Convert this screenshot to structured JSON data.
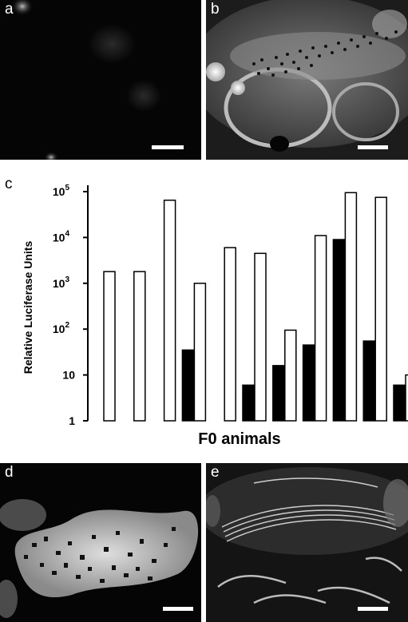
{
  "panels": {
    "a": {
      "letter": "a"
    },
    "b": {
      "letter": "b"
    },
    "c": {
      "letter": "c"
    },
    "d": {
      "letter": "d"
    },
    "e": {
      "letter": "e"
    }
  },
  "colors": {
    "filled_bar": "#000000",
    "open_bar": "#ffffff",
    "axis": "#000000"
  },
  "chart_data": {
    "type": "bar",
    "scale": "log",
    "ylabel": "Relative Luciferase Units",
    "xlabel": "F0 animals",
    "ylim": [
      1,
      100000
    ],
    "yticks": [
      {
        "value": 1,
        "label": "1"
      },
      {
        "value": 10,
        "label": "10"
      },
      {
        "value": 100,
        "label": "10",
        "exp": "2"
      },
      {
        "value": 1000,
        "label": "10",
        "exp": "3"
      },
      {
        "value": 10000,
        "label": "10",
        "exp": "4"
      },
      {
        "value": 100000,
        "label": "10",
        "exp": "5"
      }
    ],
    "groups": 11,
    "series": [
      {
        "fill": "filled",
        "values": [
          null,
          null,
          null,
          35,
          null,
          6,
          16,
          45,
          9000,
          55,
          6
        ]
      },
      {
        "fill": "open",
        "values": [
          1800,
          1800,
          65000,
          1000,
          6000,
          4500,
          95,
          11000,
          95000,
          75000,
          10
        ]
      }
    ]
  }
}
